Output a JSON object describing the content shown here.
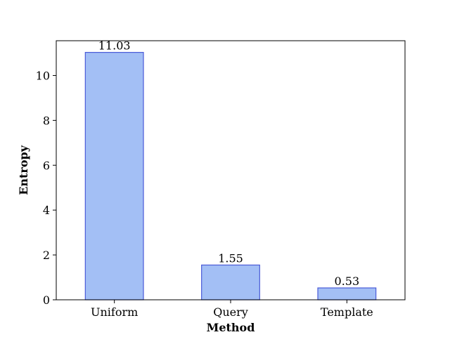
{
  "chart_data": {
    "type": "bar",
    "title": "",
    "xlabel": "Method",
    "ylabel": "Entropy",
    "categories": [
      "Uniform",
      "Query",
      "Template"
    ],
    "values": [
      11.03,
      1.55,
      0.53
    ],
    "data_labels": [
      "11.03",
      "1.55",
      "0.53"
    ],
    "ylim": [
      0,
      11.55
    ],
    "yticks": [
      0,
      2,
      4,
      6,
      8,
      10
    ],
    "grid": false,
    "legend": "none",
    "colors": {
      "bar_fill": "#a3bff5",
      "bar_edge": "#4a5ad8",
      "axis": "#000000"
    }
  }
}
